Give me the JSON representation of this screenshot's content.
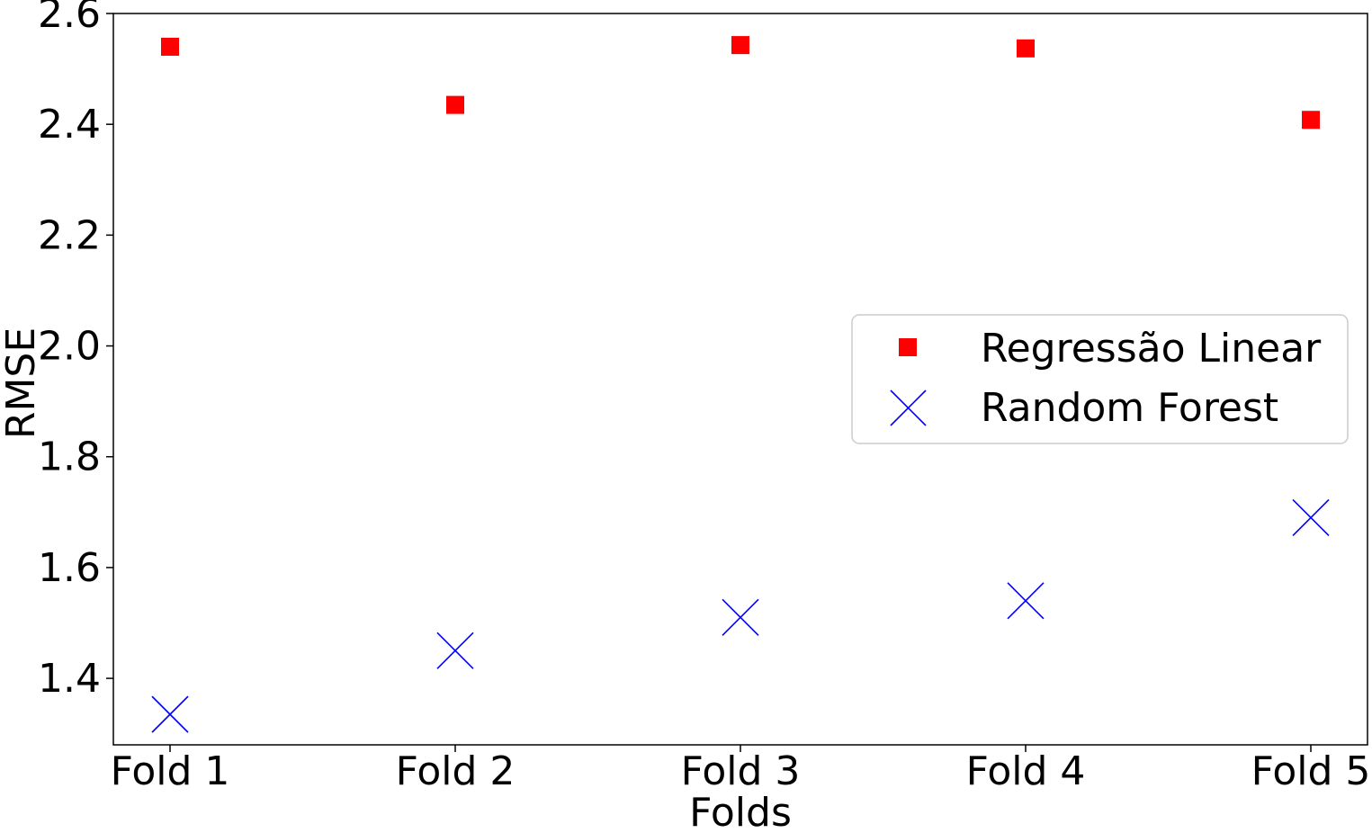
{
  "chart_data": {
    "type": "scatter",
    "title": "",
    "xlabel": "Folds",
    "ylabel": "RMSE",
    "categories": [
      "Fold 1",
      "Fold 2",
      "Fold 3",
      "Fold 4",
      "Fold 5"
    ],
    "ylim": [
      1.28,
      2.6
    ],
    "yticks": [
      "1.4",
      "1.6",
      "1.8",
      "2.0",
      "2.2",
      "2.4",
      "2.6"
    ],
    "legend_position": "center-right",
    "grid": false,
    "series": [
      {
        "name": "Regressão Linear",
        "marker": "square",
        "color": "#ff0000",
        "values": [
          2.54,
          2.435,
          2.543,
          2.537,
          2.408
        ]
      },
      {
        "name": "Random Forest",
        "marker": "x",
        "color": "#0000ff",
        "values": [
          1.335,
          1.45,
          1.51,
          1.54,
          1.69
        ]
      }
    ]
  }
}
